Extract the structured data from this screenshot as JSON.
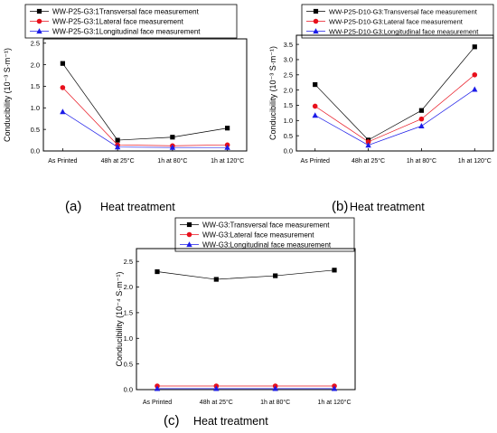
{
  "chart_data": [
    {
      "type": "line",
      "panel_label": "(a)",
      "xlabel": "Heat treatment",
      "ylabel": "Conducibility (10⁻³ S·m⁻¹)",
      "categories": [
        "As Printed",
        "48h at 25°C",
        "1h at 80°C",
        "1h at 120°C"
      ],
      "ylim": [
        0,
        2.6
      ],
      "yticks": [
        "0.0",
        "0.5",
        "1.0",
        "1.5",
        "2.0",
        "2.5"
      ],
      "legend_position": "top",
      "series": [
        {
          "name": "WW-P25-G3:1Transversal face measurement",
          "color": "#000000",
          "marker": "square",
          "values": [
            2.03,
            0.25,
            0.32,
            0.53
          ]
        },
        {
          "name": "WW-P25-G3:1Lateral face measurement",
          "color": "#e8101c",
          "marker": "circle",
          "values": [
            1.47,
            0.14,
            0.12,
            0.14
          ]
        },
        {
          "name": "WW-P25-G3:1Longitudinal face measurement",
          "color": "#1c1ce8",
          "marker": "triangle",
          "values": [
            0.91,
            0.09,
            0.08,
            0.08
          ]
        }
      ]
    },
    {
      "type": "line",
      "panel_label": "(b)",
      "xlabel": "Heat treatment",
      "ylabel": "Conducibility (10⁻³ S·m⁻¹)",
      "categories": [
        "As Printed",
        "48h at 25°C",
        "1h at 80°C",
        "1h at 120°C"
      ],
      "ylim": [
        0,
        3.8
      ],
      "yticks": [
        "0.0",
        "0.5",
        "1.0",
        "1.5",
        "2.0",
        "2.5",
        "3.0",
        "3.5"
      ],
      "legend_position": "top",
      "series": [
        {
          "name": "WW-P25-D10-G3:Transversal face measurement",
          "color": "#000000",
          "marker": "square",
          "values": [
            2.18,
            0.36,
            1.33,
            3.42
          ]
        },
        {
          "name": "WW-P25-D10-G3:Lateral face measurement",
          "color": "#e8101c",
          "marker": "circle",
          "values": [
            1.47,
            0.3,
            1.05,
            2.5
          ]
        },
        {
          "name": "WW-P25-D10-G3:Longitudinal face measurement",
          "color": "#1c1ce8",
          "marker": "triangle",
          "values": [
            1.17,
            0.19,
            0.82,
            2.02
          ]
        }
      ]
    },
    {
      "type": "line",
      "panel_label": "(c)",
      "xlabel": "Heat treatment",
      "ylabel": "Conducibility (10⁻⁴ S·m⁻¹)",
      "categories": [
        "As Printed",
        "48h at 25°C",
        "1h at 80°C",
        "1h at 120°C"
      ],
      "ylim": [
        0,
        2.75
      ],
      "yticks": [
        "0.0",
        "0.5",
        "1.0",
        "1.5",
        "2.0",
        "2.5"
      ],
      "legend_position": "top",
      "series": [
        {
          "name": "WW-G3:Transversal face measurement",
          "color": "#000000",
          "marker": "square",
          "values": [
            2.3,
            2.15,
            2.22,
            2.33
          ]
        },
        {
          "name": "WW-G3:Lateral face measurement",
          "color": "#e8101c",
          "marker": "circle",
          "values": [
            0.07,
            0.07,
            0.07,
            0.07
          ]
        },
        {
          "name": "WW-G3:Longitudinal face measurement",
          "color": "#1c1ce8",
          "marker": "triangle",
          "values": [
            0.02,
            0.02,
            0.02,
            0.02
          ]
        }
      ]
    }
  ]
}
